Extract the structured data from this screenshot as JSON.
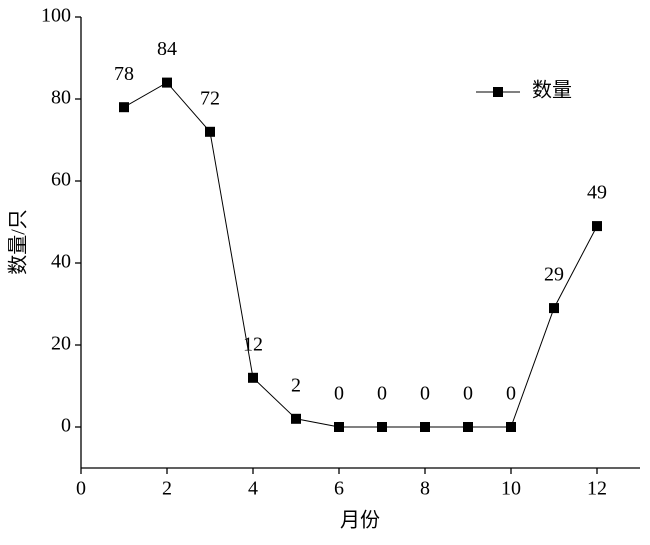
{
  "chart_data": {
    "type": "line",
    "x_label": "月份",
    "y_label": "数量/只",
    "x": [
      1,
      2,
      3,
      4,
      5,
      6,
      7,
      8,
      9,
      10,
      11,
      12
    ],
    "series": [
      {
        "name": "数量",
        "color": "#000000",
        "values": [
          78,
          84,
          72,
          12,
          2,
          0,
          0,
          0,
          0,
          0,
          29,
          49
        ]
      }
    ],
    "xlim": [
      0,
      13
    ],
    "xticks": [
      0,
      2,
      4,
      6,
      8,
      10,
      12
    ],
    "ylim": [
      -10,
      100
    ],
    "yticks": [
      0,
      20,
      40,
      60,
      80,
      100
    ],
    "legend": "top-right",
    "grid": false
  }
}
